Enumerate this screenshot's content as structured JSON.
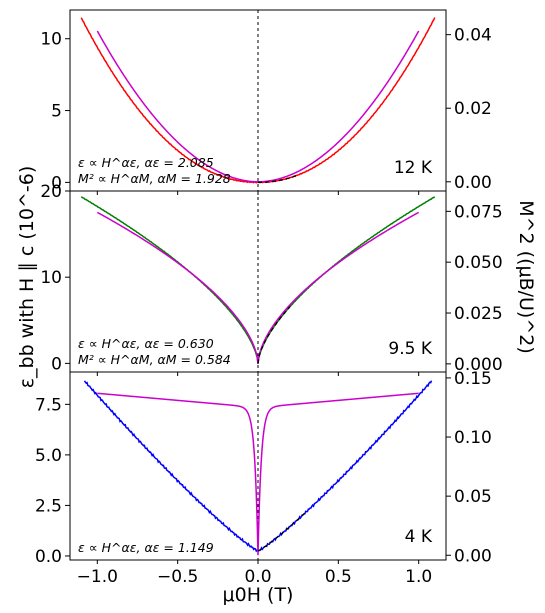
{
  "chart_data": {
    "type": "line",
    "xlabel": "μ0H (T)",
    "ylabel_left": "ε_bb with H ∥ c (10^-6)",
    "ylabel_right": "M^2 ((μB/U)^2)",
    "xlim": [
      -1.17,
      1.17
    ],
    "x_ticks": [
      "−1.0",
      "−0.5",
      "0.0",
      "0.5",
      "1.0"
    ],
    "x_tick_values": [
      -1.0,
      -0.5,
      0.0,
      0.5,
      1.0
    ],
    "colors": {
      "eps_12K": "#ff0000",
      "eps_9_5K": "#008000",
      "eps_4K": "#0000ff",
      "m2": "#cc00cc",
      "fit": "#000000"
    },
    "panels": [
      {
        "temperature": "12 K",
        "left_ylim": [
          -0.6,
          12.0
        ],
        "right_ylim": [
          -0.0025,
          0.0467
        ],
        "left_ticks": [
          "0",
          "5",
          "10"
        ],
        "left_tick_values": [
          0,
          5,
          10
        ],
        "right_ticks": [
          "0.00",
          "0.02",
          "0.04"
        ],
        "right_tick_values": [
          0.0,
          0.02,
          0.04
        ],
        "annotation_lines": [
          "ε ∝ H^αε, αε = 2.085",
          "M² ∝ H^αM, αM = 1.928"
        ],
        "strain": {
          "prefactor": 9.4,
          "alpha": 2.085,
          "xrange": [
            -1.1,
            1.1
          ]
        },
        "m2": {
          "prefactor": 0.041,
          "alpha": 1.928,
          "xrange": [
            -1.0,
            1.0
          ]
        },
        "fit": {
          "xrange": [
            0.0,
            0.25
          ]
        }
      },
      {
        "temperature": "9.5 K",
        "left_ylim": [
          -1.0,
          20.0
        ],
        "right_ylim": [
          -0.004,
          0.085
        ],
        "left_ticks": [
          "0",
          "10",
          "20"
        ],
        "left_tick_values": [
          0,
          10,
          20
        ],
        "right_ticks": [
          "0.000",
          "0.025",
          "0.050",
          "0.075"
        ],
        "right_tick_values": [
          0.0,
          0.025,
          0.05,
          0.075
        ],
        "annotation_lines": [
          "ε ∝ H^αε, αε = 0.630",
          "M² ∝ H^αM, αM = 0.584"
        ],
        "strain": {
          "prefactor": 18.2,
          "alpha": 0.63,
          "xrange": [
            -1.1,
            1.1
          ]
        },
        "m2": {
          "prefactor": 0.0745,
          "alpha": 0.584,
          "xrange": [
            -1.0,
            1.0
          ]
        },
        "fit": {
          "xrange": [
            0.0,
            0.2
          ]
        }
      },
      {
        "temperature": "4 K",
        "left_ylim": [
          -0.2,
          9.1
        ],
        "right_ylim": [
          -0.004,
          0.155
        ],
        "left_ticks": [
          "0.0",
          "2.5",
          "5.0",
          "7.5"
        ],
        "left_tick_values": [
          0.0,
          2.5,
          5.0,
          7.5
        ],
        "right_ticks": [
          "0.00",
          "0.05",
          "0.10",
          "0.15"
        ],
        "right_tick_values": [
          0.0,
          0.05,
          0.1,
          0.15
        ],
        "annotation_lines": [
          "ε ∝ H^αε, αε = 1.149"
        ],
        "strain": {
          "prefactor": 7.7,
          "alpha": 1.149,
          "offset": 0.25,
          "xrange": [
            -1.08,
            1.08
          ]
        },
        "m2_saturating": {
          "plateau": 0.125,
          "slope": 0.012,
          "dip_width": 0.02,
          "xrange": [
            -1.0,
            1.0
          ]
        },
        "fit": {
          "xrange": [
            0.0,
            0.3
          ]
        }
      }
    ]
  }
}
